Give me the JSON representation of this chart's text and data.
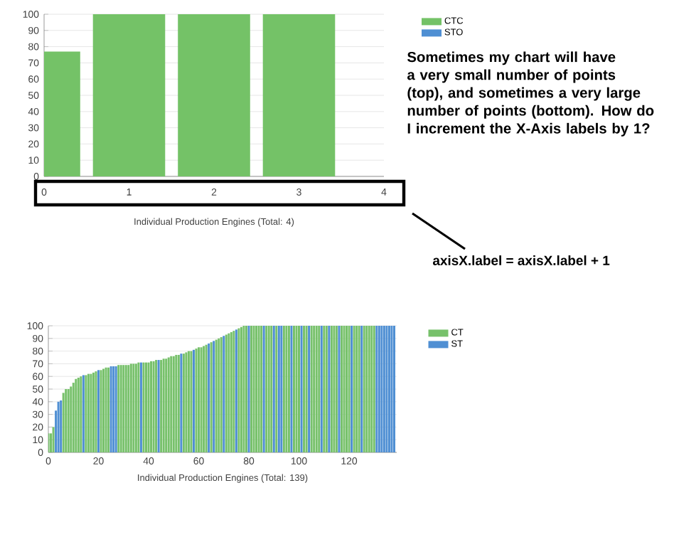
{
  "chart_data": [
    {
      "type": "bar",
      "xlabel": "Individual Production Engines (Total: 4)",
      "x": [
        0,
        1,
        2,
        3
      ],
      "series": [
        {
          "name": "CTC",
          "color": "#74c267",
          "values": [
            77,
            100,
            100,
            100
          ]
        },
        {
          "name": "STO",
          "color": "#4f8fd3",
          "values": [
            null,
            null,
            null,
            null
          ]
        }
      ],
      "xlim": [
        0,
        4
      ],
      "ylim": [
        0,
        100
      ],
      "xticks": [
        0,
        1,
        2,
        3,
        4
      ],
      "yticks": [
        0,
        10,
        20,
        30,
        40,
        50,
        60,
        70,
        80,
        90,
        100
      ],
      "grid": "y",
      "legend": "top right",
      "annotations": [
        "Sometimes my chart will have a very small number of points (top), and sometimes a very large number of points (bottom). How do I increment the X-Axis labels by 1?"
      ]
    },
    {
      "type": "bar",
      "xlabel": "Individual Production Engines (Total: 139)",
      "x": [
        0,
        1,
        2,
        3,
        4,
        5,
        6,
        7,
        8,
        9,
        10,
        11,
        12,
        13,
        14,
        15,
        16,
        17,
        18,
        19,
        20,
        21,
        22,
        23,
        24,
        25,
        26,
        27,
        28,
        29,
        30,
        31,
        32,
        33,
        34,
        35,
        36,
        37,
        38,
        39,
        40,
        41,
        42,
        43,
        44,
        45,
        46,
        47,
        48,
        49,
        50,
        51,
        52,
        53,
        54,
        55,
        56,
        57,
        58,
        59,
        60,
        61,
        62,
        63,
        64,
        65,
        66,
        67,
        68,
        69,
        70,
        71,
        72,
        73,
        74,
        75,
        76,
        77,
        78,
        79,
        80,
        81,
        82,
        83,
        84,
        85,
        86,
        87,
        88,
        89,
        90,
        91,
        92,
        93,
        94,
        95,
        96,
        97,
        98,
        99,
        100,
        101,
        102,
        103,
        104,
        105,
        106,
        107,
        108,
        109,
        110,
        111,
        112,
        113,
        114,
        115,
        116,
        117,
        118,
        119,
        120,
        121,
        122,
        123,
        124,
        125,
        126,
        127,
        128,
        129,
        130,
        131,
        132,
        133,
        134,
        135,
        136,
        137,
        138
      ],
      "series": [
        {
          "name": "CT",
          "color": "#77c16b",
          "values": [
            15,
            15,
            20,
            null,
            null,
            null,
            47,
            50,
            50,
            52,
            55,
            58,
            59,
            60,
            null,
            61,
            62,
            62,
            63,
            64,
            null,
            65,
            66,
            67,
            67,
            null,
            null,
            null,
            69,
            69,
            69,
            69,
            69,
            70,
            70,
            70,
            71,
            null,
            71,
            71,
            71,
            72,
            72,
            73,
            null,
            73,
            74,
            74,
            75,
            76,
            76,
            77,
            77,
            null,
            78,
            79,
            80,
            80,
            null,
            82,
            83,
            83,
            84,
            85,
            null,
            87,
            null,
            89,
            90,
            91,
            null,
            93,
            94,
            95,
            96,
            null,
            98,
            99,
            100,
            100,
            null,
            100,
            100,
            100,
            100,
            100,
            null,
            100,
            100,
            100,
            null,
            100,
            null,
            null,
            100,
            100,
            100,
            null,
            100,
            100,
            100,
            null,
            100,
            100,
            null,
            100,
            100,
            100,
            100,
            null,
            100,
            100,
            null,
            100,
            100,
            100,
            null,
            100,
            100,
            100,
            100,
            null,
            100,
            100,
            100,
            null,
            100,
            100,
            100,
            100,
            100,
            null,
            null,
            null,
            null,
            null,
            null,
            null,
            null
          ]
        },
        {
          "name": "ST",
          "color": "#4f8fd3",
          "values": [
            null,
            null,
            null,
            33,
            40,
            41,
            null,
            null,
            null,
            null,
            null,
            null,
            null,
            null,
            61,
            null,
            null,
            null,
            null,
            null,
            65,
            null,
            null,
            null,
            null,
            68,
            68,
            68,
            null,
            null,
            null,
            null,
            null,
            null,
            null,
            null,
            null,
            71,
            null,
            null,
            null,
            null,
            null,
            null,
            73,
            null,
            null,
            null,
            null,
            null,
            null,
            null,
            null,
            78,
            null,
            null,
            null,
            null,
            81,
            null,
            null,
            null,
            null,
            null,
            86,
            null,
            88,
            null,
            null,
            null,
            92,
            null,
            null,
            null,
            null,
            97,
            null,
            null,
            null,
            null,
            100,
            null,
            null,
            null,
            null,
            null,
            100,
            null,
            null,
            null,
            100,
            null,
            100,
            100,
            null,
            null,
            null,
            100,
            null,
            null,
            null,
            100,
            null,
            null,
            100,
            null,
            null,
            null,
            null,
            100,
            null,
            null,
            100,
            null,
            null,
            null,
            100,
            null,
            null,
            null,
            null,
            100,
            null,
            null,
            null,
            100,
            null,
            null,
            null,
            null,
            null,
            100,
            100,
            100,
            100,
            100,
            100,
            100,
            100
          ]
        }
      ],
      "xlim": [
        0,
        139
      ],
      "ylim": [
        0,
        100
      ],
      "xticks": [
        0,
        20,
        40,
        60,
        80,
        100,
        120
      ],
      "yticks": [
        0,
        10,
        20,
        30,
        40,
        50,
        60,
        70,
        80,
        90,
        100
      ],
      "grid": "y",
      "legend": "top right",
      "annotations": [
        "axisX.label = axisX.label + 1"
      ]
    }
  ]
}
